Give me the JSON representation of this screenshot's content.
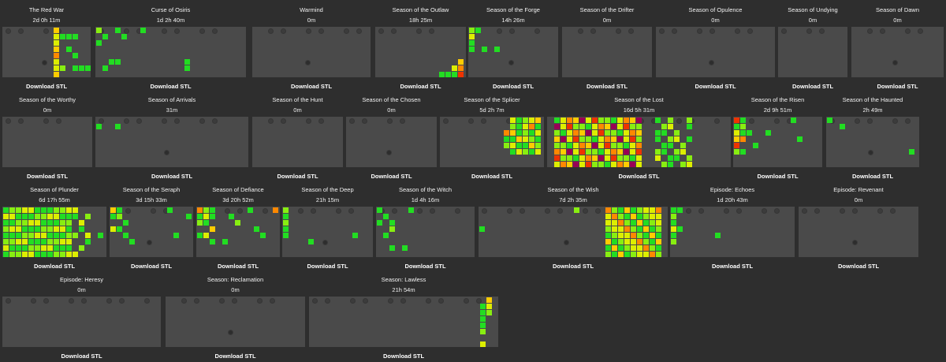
{
  "seasons": [
    {
      "title": "The Red War",
      "time": "2d 0h 11m",
      "download": "Download STL"
    },
    {
      "title": "Curse of Osiris",
      "time": "1d 2h 40m",
      "download": "Download STL"
    },
    {
      "title": "Warmind",
      "time": "0m",
      "download": "Download STL"
    },
    {
      "title": "Season of the Outlaw",
      "time": "18h 25m",
      "download": "Download STL"
    },
    {
      "title": "Season of the Forge",
      "time": "14h 26m",
      "download": "Download STL"
    },
    {
      "title": "Season of the Drifter",
      "time": "0m",
      "download": "Download STL"
    },
    {
      "title": "Season of Opulence",
      "time": "0m",
      "download": "Download STL"
    },
    {
      "title": "Season of Undying",
      "time": "0m",
      "download": "Download STL"
    },
    {
      "title": "Season of Dawn",
      "time": "0m",
      "download": "Download STL"
    },
    {
      "title": "Season of the Worthy",
      "time": "0m",
      "download": "Download STL"
    },
    {
      "title": "Season of Arrivals",
      "time": "31m",
      "download": "Download STL"
    },
    {
      "title": "Season of the Hunt",
      "time": "0m",
      "download": "Download STL"
    },
    {
      "title": "Season of the Chosen",
      "time": "0m",
      "download": "Download STL"
    },
    {
      "title": "Season of the Splicer",
      "time": "5d 2h 7m",
      "download": "Download STL"
    },
    {
      "title": "Season of the Lost",
      "time": "16d 5h 31m",
      "download": "Download STL"
    },
    {
      "title": "Season of the Risen",
      "time": "2d 9h 51m",
      "download": "Download STL"
    },
    {
      "title": "Season of the Haunted",
      "time": "2h 49m",
      "download": "Download STL"
    },
    {
      "title": "Season of Plunder",
      "time": "6d 17h 55m",
      "download": "Download STL"
    },
    {
      "title": "Season of the Seraph",
      "time": "3d 15h 33m",
      "download": "Download STL"
    },
    {
      "title": "Season of Defiance",
      "time": "3d 20h 52m",
      "download": "Download STL"
    },
    {
      "title": "Season of the Deep",
      "time": "21h 15m",
      "download": "Download STL"
    },
    {
      "title": "Season of the Witch",
      "time": "1d 4h 16m",
      "download": "Download STL"
    },
    {
      "title": "Season of the Wish",
      "time": "7d 2h 35m",
      "download": "Download STL"
    },
    {
      "title": "Episode: Echoes",
      "time": "1d 20h 43m",
      "download": "Download STL"
    },
    {
      "title": "Episode: Revenant",
      "time": "0m",
      "download": "Download STL"
    },
    {
      "title": "Episode: Heresy",
      "time": "0m",
      "download": "Download STL"
    },
    {
      "title": "Season: Reclamation",
      "time": "0m",
      "download": "Download STL"
    },
    {
      "title": "Season: Lawless",
      "time": "21h 54m",
      "download": "Download STL"
    }
  ],
  "heat_colors": {
    "low": "#22dd22",
    "mid_low": "#88ee11",
    "mid": "#ddee00",
    "high": "#ffcc00",
    "higher": "#ff8800",
    "peak": "#ee3300",
    "max": "#990055"
  },
  "empty_cell_color": "#4a4a4a",
  "background_color": "#2e2e2e",
  "icon_names": [
    "season-symbol-icon",
    "activity-marker-icon"
  ]
}
